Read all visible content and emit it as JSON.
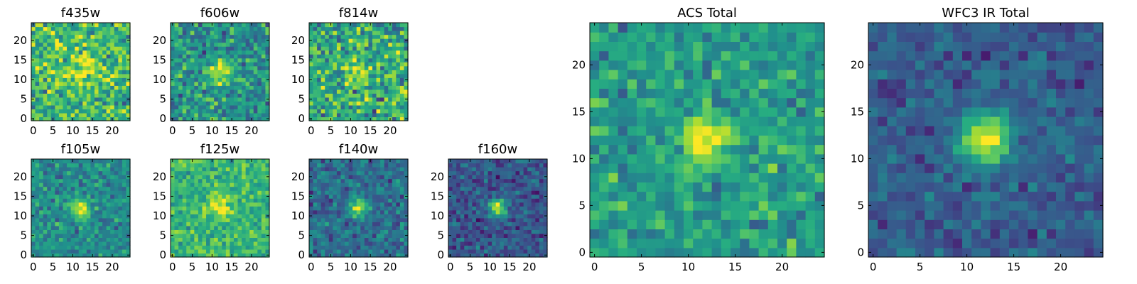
{
  "chart_data": {
    "type": "heatmap",
    "colormap": "viridis",
    "colors": {
      "low": "#440154",
      "mid_low": "#3b528b",
      "mid": "#21908d",
      "mid_high": "#5dc963",
      "high": "#fde725"
    },
    "panels": [
      {
        "id": "f435w",
        "title": "f435w",
        "grid_size": 25,
        "xlim": [
          -0.5,
          24.5
        ],
        "ylim": [
          -0.5,
          24.5
        ],
        "xticks": [
          0,
          5,
          10,
          15,
          20
        ],
        "yticks": [
          0,
          5,
          10,
          15,
          20
        ],
        "source_center": [
          12,
          12
        ],
        "source_sigma": 3.0,
        "peak": 0.28,
        "background": 0.68,
        "noise": 0.22,
        "seed": 11
      },
      {
        "id": "f606w",
        "title": "f606w",
        "grid_size": 25,
        "xlim": [
          -0.5,
          24.5
        ],
        "ylim": [
          -0.5,
          24.5
        ],
        "xticks": [
          0,
          5,
          10,
          15,
          20
        ],
        "yticks": [
          0,
          5,
          10,
          15,
          20
        ],
        "source_center": [
          12,
          12
        ],
        "source_sigma": 2.0,
        "peak": 0.45,
        "background": 0.52,
        "noise": 0.2,
        "seed": 23
      },
      {
        "id": "f814w",
        "title": "f814w",
        "grid_size": 25,
        "xlim": [
          -0.5,
          24.5
        ],
        "ylim": [
          -0.5,
          24.5
        ],
        "xticks": [
          0,
          5,
          10,
          15,
          20
        ],
        "yticks": [
          0,
          5,
          10,
          15,
          20
        ],
        "source_center": [
          12,
          12
        ],
        "source_sigma": 2.0,
        "peak": 0.3,
        "background": 0.62,
        "noise": 0.24,
        "seed": 37
      },
      {
        "id": "acs-total",
        "title": "ACS Total",
        "grid_size": 25,
        "xlim": [
          -0.5,
          24.5
        ],
        "ylim": [
          -0.5,
          24.5
        ],
        "xticks": [
          0,
          5,
          10,
          15,
          20
        ],
        "yticks": [
          0,
          5,
          10,
          15,
          20
        ],
        "source_center": [
          12,
          12
        ],
        "source_sigma": 1.7,
        "peak": 0.55,
        "background": 0.55,
        "noise": 0.16,
        "seed": 41
      },
      {
        "id": "wfc3-ir-total",
        "title": "WFC3 IR Total",
        "grid_size": 25,
        "xlim": [
          -0.5,
          24.5
        ],
        "ylim": [
          -0.5,
          24.5
        ],
        "xticks": [
          0,
          5,
          10,
          15,
          20
        ],
        "yticks": [
          0,
          5,
          10,
          15,
          20
        ],
        "source_center": [
          12,
          12
        ],
        "source_sigma": 1.9,
        "peak": 0.7,
        "background": 0.3,
        "noise": 0.1,
        "seed": 53
      },
      {
        "id": "f105w",
        "title": "f105w",
        "grid_size": 25,
        "xlim": [
          -0.5,
          24.5
        ],
        "ylim": [
          -0.5,
          24.5
        ],
        "xticks": [
          0,
          5,
          10,
          15,
          20
        ],
        "yticks": [
          0,
          5,
          10,
          15,
          20
        ],
        "source_center": [
          12,
          12
        ],
        "source_sigma": 1.7,
        "peak": 0.5,
        "background": 0.48,
        "noise": 0.14,
        "seed": 61
      },
      {
        "id": "f125w",
        "title": "f125w",
        "grid_size": 25,
        "xlim": [
          -0.5,
          24.5
        ],
        "ylim": [
          -0.5,
          24.5
        ],
        "xticks": [
          0,
          5,
          10,
          15,
          20
        ],
        "yticks": [
          0,
          5,
          10,
          15,
          20
        ],
        "source_center": [
          12,
          12
        ],
        "source_sigma": 2.2,
        "peak": 0.3,
        "background": 0.66,
        "noise": 0.14,
        "seed": 73
      },
      {
        "id": "f140w",
        "title": "f140w",
        "grid_size": 25,
        "xlim": [
          -0.5,
          24.5
        ],
        "ylim": [
          -0.5,
          24.5
        ],
        "xticks": [
          0,
          5,
          10,
          15,
          20
        ],
        "yticks": [
          0,
          5,
          10,
          15,
          20
        ],
        "source_center": [
          12,
          12
        ],
        "source_sigma": 1.6,
        "peak": 0.62,
        "background": 0.36,
        "noise": 0.14,
        "seed": 83
      },
      {
        "id": "f160w",
        "title": "f160w",
        "grid_size": 25,
        "xlim": [
          -0.5,
          24.5
        ],
        "ylim": [
          -0.5,
          24.5
        ],
        "xticks": [
          0,
          5,
          10,
          15,
          20
        ],
        "yticks": [
          0,
          5,
          10,
          15,
          20
        ],
        "source_center": [
          12,
          12
        ],
        "source_sigma": 1.5,
        "peak": 0.7,
        "background": 0.28,
        "noise": 0.12,
        "seed": 97
      }
    ]
  }
}
